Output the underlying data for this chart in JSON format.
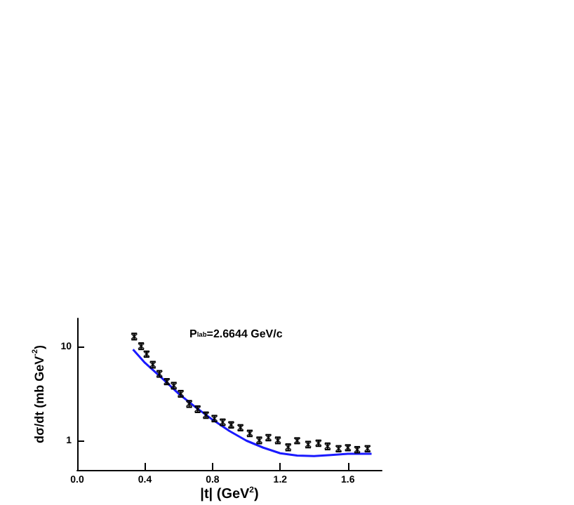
{
  "chart_data": {
    "type": "scatter",
    "title": "P$_{lab}$=2.6644 GeV/c",
    "xlabel": "|t| (GeV$^{2}$)",
    "ylabel": "dσ/dt (mb GeV$^{-2}$)",
    "log": "y",
    "xlim": [
      0,
      1.8
    ],
    "xticks": [
      {
        "value": 0,
        "label": "0.0"
      },
      0.4,
      0.8,
      1.2,
      1.6
    ],
    "ylim": [
      0.5,
      20
    ],
    "yticks": [
      1,
      10
    ],
    "grid": false,
    "series": [
      {
        "marker": "cross",
        "color": "#000000",
        "x": [
          0.337,
          0.378,
          0.41,
          0.447,
          0.486,
          0.53,
          0.571,
          0.612,
          0.662,
          0.712,
          0.761,
          0.811,
          0.86,
          0.91,
          0.965,
          1.02,
          1.076,
          1.13,
          1.186,
          1.247,
          1.3,
          1.365,
          1.426,
          1.48,
          1.545,
          1.6,
          1.655,
          1.716
        ],
        "values": [
          12.9,
          10.2,
          8.4,
          6.5,
          5.2,
          4.3,
          3.9,
          3.2,
          2.5,
          2.2,
          1.9,
          1.75,
          1.6,
          1.5,
          1.4,
          1.22,
          1.03,
          1.1,
          1.03,
          0.87,
          1.02,
          0.93,
          0.96,
          0.89,
          0.84,
          0.86,
          0.82,
          0.84
        ],
        "errors": [
          1.0,
          0.8,
          0.6,
          0.5,
          0.4,
          0.3,
          0.3,
          0.25,
          0.2,
          0.17,
          0.14,
          0.13,
          0.12,
          0.11,
          0.1,
          0.09,
          0.08,
          0.08,
          0.08,
          0.07,
          0.07,
          0.07,
          0.07,
          0.07,
          0.06,
          0.06,
          0.06,
          0.06
        ]
      },
      {
        "type": "line",
        "color": "#1a1aff",
        "x": [
          0.33,
          0.4,
          0.5,
          0.6,
          0.7,
          0.8,
          0.9,
          1.0,
          1.1,
          1.2,
          1.3,
          1.4,
          1.5,
          1.6,
          1.74
        ],
        "values": [
          9.4,
          6.8,
          4.7,
          3.2,
          2.3,
          1.7,
          1.29,
          1.02,
          0.86,
          0.75,
          0.71,
          0.7,
          0.72,
          0.74,
          0.74
        ]
      }
    ]
  }
}
